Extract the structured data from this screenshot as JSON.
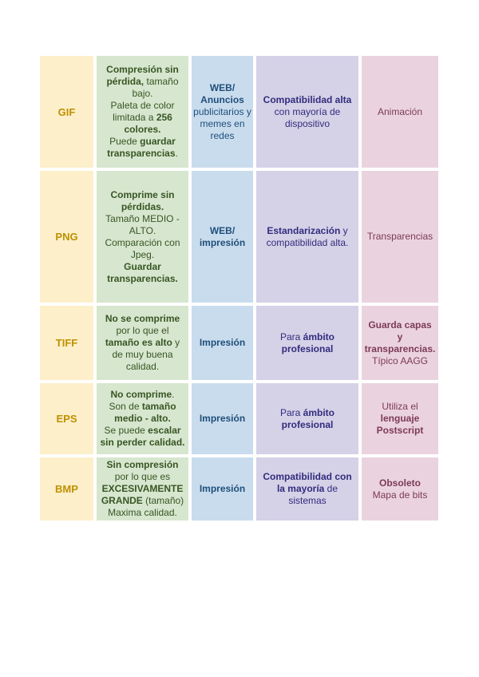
{
  "colors": {
    "format_bg": "#FCEFC9",
    "format_text": "#BF9000",
    "description_bg": "#D7E6CF",
    "description_text": "#375623",
    "usage_bg": "#C9DCEE",
    "usage_text": "#1F4E79",
    "compatibility_bg": "#D5D1E7",
    "compatibility_text": "#322C7D",
    "features_bg": "#EAD3DE",
    "features_text": "#7D3A58"
  },
  "table": {
    "rows": [
      {
        "format": "GIF",
        "description": [
          [
            {
              "t": "Compresión sin pérdida,",
              "b": true
            },
            {
              "t": " tamaño bajo.",
              "b": false
            }
          ],
          [
            {
              "t": "Paleta de color limitada a ",
              "b": false
            },
            {
              "t": "256 colores.",
              "b": true
            }
          ],
          [
            {
              "t": "Puede ",
              "b": false
            },
            {
              "t": "guardar transparencias",
              "b": true
            },
            {
              "t": ".",
              "b": false
            }
          ]
        ],
        "usage": [
          [
            {
              "t": "WEB/ Anuncios",
              "b": true
            },
            {
              "t": " publicitarios y memes en redes",
              "b": false
            }
          ]
        ],
        "compatibility": [
          [
            {
              "t": "Compatibilidad alta",
              "b": true
            },
            {
              "t": " con mayoría de dispositivo",
              "b": false
            }
          ]
        ],
        "features": [
          [
            {
              "t": "Animación",
              "b": false
            }
          ]
        ]
      },
      {
        "format": "PNG",
        "description": [
          [
            {
              "t": "Comprime sin pérdidas.",
              "b": true
            }
          ],
          [
            {
              "t": "Tamaño MEDIO - ALTO.",
              "b": false
            }
          ],
          [
            {
              "t": "Comparación con Jpeg.",
              "b": false
            }
          ],
          [
            {
              "t": "Guardar transparencias.",
              "b": true
            }
          ]
        ],
        "usage": [
          [
            {
              "t": "WEB/ impresión",
              "b": true
            }
          ]
        ],
        "compatibility": [
          [
            {
              "t": "Estandarización",
              "b": true
            },
            {
              "t": " y compatibilidad alta.",
              "b": false
            }
          ]
        ],
        "features": [
          [
            {
              "t": "Transparencias",
              "b": false
            }
          ]
        ]
      },
      {
        "format": "TIFF",
        "description": [
          [
            {
              "t": "No se comprime",
              "b": true
            },
            {
              "t": " por lo que el ",
              "b": false
            },
            {
              "t": "tamaño es alto",
              "b": true
            },
            {
              "t": " y de muy buena calidad.",
              "b": false
            }
          ]
        ],
        "usage": [
          [
            {
              "t": "Impresión",
              "b": true
            }
          ]
        ],
        "compatibility": [
          [
            {
              "t": "Para ",
              "b": false
            },
            {
              "t": "ámbito profesional",
              "b": true
            }
          ]
        ],
        "features": [
          [
            {
              "t": "Guarda capas y transparencias.",
              "b": true
            }
          ],
          [
            {
              "t": "Típico AAGG",
              "b": false
            }
          ]
        ]
      },
      {
        "format": "EPS",
        "description": [
          [
            {
              "t": "No comprime",
              "b": true
            },
            {
              "t": ".",
              "b": false
            }
          ],
          [
            {
              "t": "Son de ",
              "b": false
            },
            {
              "t": "tamaño medio - alto.",
              "b": true
            }
          ],
          [
            {
              "t": "Se puede ",
              "b": false
            },
            {
              "t": "escalar sin perder calidad.",
              "b": true
            }
          ]
        ],
        "usage": [
          [
            {
              "t": "Impresión",
              "b": true
            }
          ]
        ],
        "compatibility": [
          [
            {
              "t": "Para ",
              "b": false
            },
            {
              "t": "ámbito profesional",
              "b": true
            }
          ]
        ],
        "features": [
          [
            {
              "t": "Utiliza el ",
              "b": false
            },
            {
              "t": "lenguaje Postscript",
              "b": true
            }
          ]
        ]
      },
      {
        "format": "BMP",
        "description": [
          [
            {
              "t": "Sin compresión",
              "b": true
            },
            {
              "t": " por lo que es ",
              "b": false
            },
            {
              "t": "EXCESIVAMENTE GRANDE",
              "b": true
            },
            {
              "t": " (tamaño)",
              "b": false
            }
          ],
          [
            {
              "t": "Maxima calidad.",
              "b": false
            }
          ]
        ],
        "usage": [
          [
            {
              "t": "Impresión",
              "b": true
            }
          ]
        ],
        "compatibility": [
          [
            {
              "t": "Compatibilidad con la mayoría",
              "b": true
            },
            {
              "t": " de sistemas",
              "b": false
            }
          ]
        ],
        "features": [
          [
            {
              "t": "Obsoleto",
              "b": true
            }
          ],
          [
            {
              "t": "Mapa de bits",
              "b": false
            }
          ]
        ]
      }
    ]
  }
}
